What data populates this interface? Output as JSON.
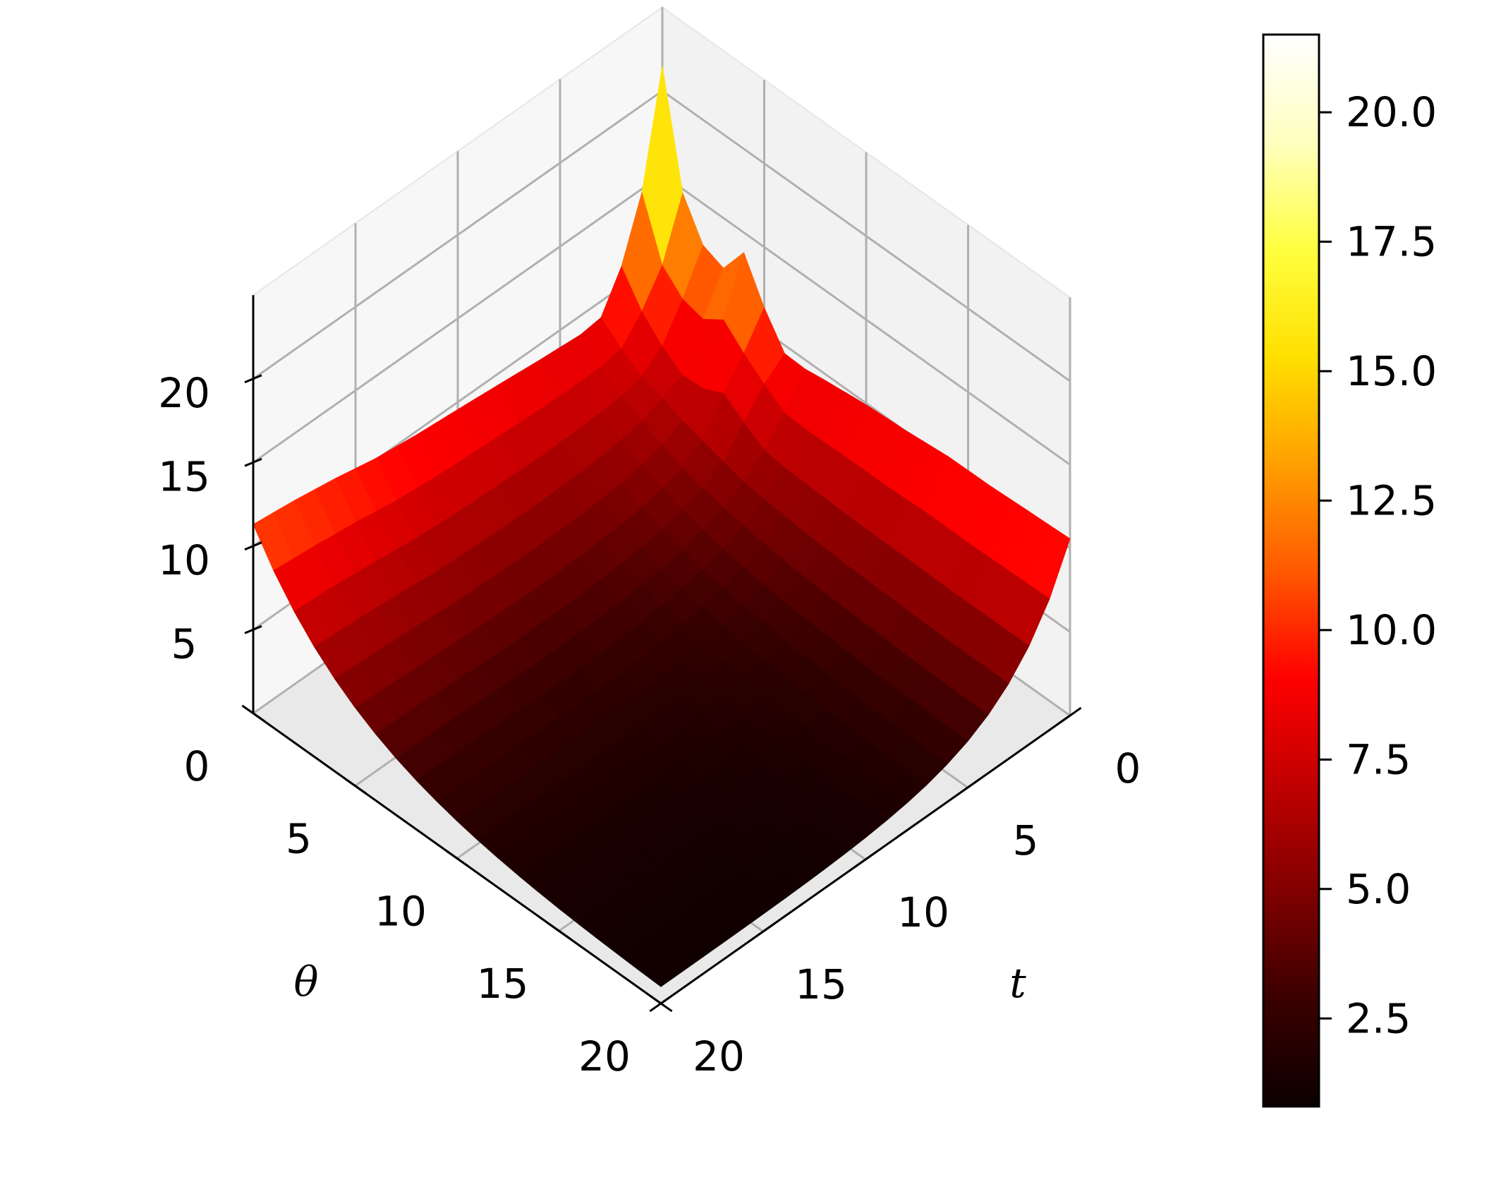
{
  "chart_data": {
    "type": "surface3d",
    "title": "",
    "x_axis": {
      "label": "θ",
      "ticks": [
        "0",
        "5",
        "10",
        "15",
        "20"
      ],
      "range": [
        0,
        20
      ]
    },
    "y_axis": {
      "label": "t",
      "ticks": [
        "0",
        "5",
        "10",
        "15",
        "20"
      ],
      "range": [
        0,
        20
      ]
    },
    "z_axis": {
      "label": "",
      "ticks": [
        "5",
        "10",
        "15",
        "20"
      ],
      "range": [
        0,
        25
      ]
    },
    "grid": true,
    "colormap": "hot",
    "colorbar": {
      "range": [
        0.8,
        21.5
      ],
      "ticks": [
        "2.5",
        "5.0",
        "7.5",
        "10.0",
        "12.5",
        "15.0",
        "17.5",
        "20.0"
      ],
      "stops": [
        "#0b0000",
        "#3a0000",
        "#800000",
        "#c00000",
        "#ff0000",
        "#ff5a00",
        "#ffa000",
        "#ffe000",
        "#ffff40",
        "#ffffc0",
        "#ffffff"
      ]
    },
    "surface_profile": {
      "theta_edge_t0": [
        8.9,
        9.1,
        9.3,
        9.6,
        9.9,
        10.1,
        10.2,
        10.4,
        10.4,
        10.5,
        10.6
      ],
      "t_edge_theta0": [
        8.9,
        9.0,
        9.1,
        9.2,
        9.4,
        9.6,
        9.8,
        10.1,
        10.6,
        11.0,
        11.3
      ],
      "decay_depth_theta": 5.0,
      "decay_depth_t": 3.0,
      "floor": 0.8,
      "peaks": [
        {
          "theta": 0.0,
          "t": 0.0,
          "z": 21.5
        },
        {
          "theta": 0.0,
          "t": 0.0,
          "z": 17.0
        },
        {
          "theta": 0.0,
          "t": 1.0,
          "z": 14.0
        },
        {
          "theta": 1.0,
          "t": 0.0,
          "z": 13.5
        },
        {
          "theta": 2.0,
          "t": 0.0,
          "z": 12.5
        },
        {
          "theta": 3.0,
          "t": 0.0,
          "z": 12.0
        },
        {
          "theta": 4.0,
          "t": 0.0,
          "z": 13.8
        },
        {
          "theta": 1.0,
          "t": 1.0,
          "z": 10.5
        },
        {
          "theta": 3.0,
          "t": 2.0,
          "z": 7.0
        },
        {
          "theta": 5.0,
          "t": 1.0,
          "z": 9.5
        }
      ]
    }
  }
}
